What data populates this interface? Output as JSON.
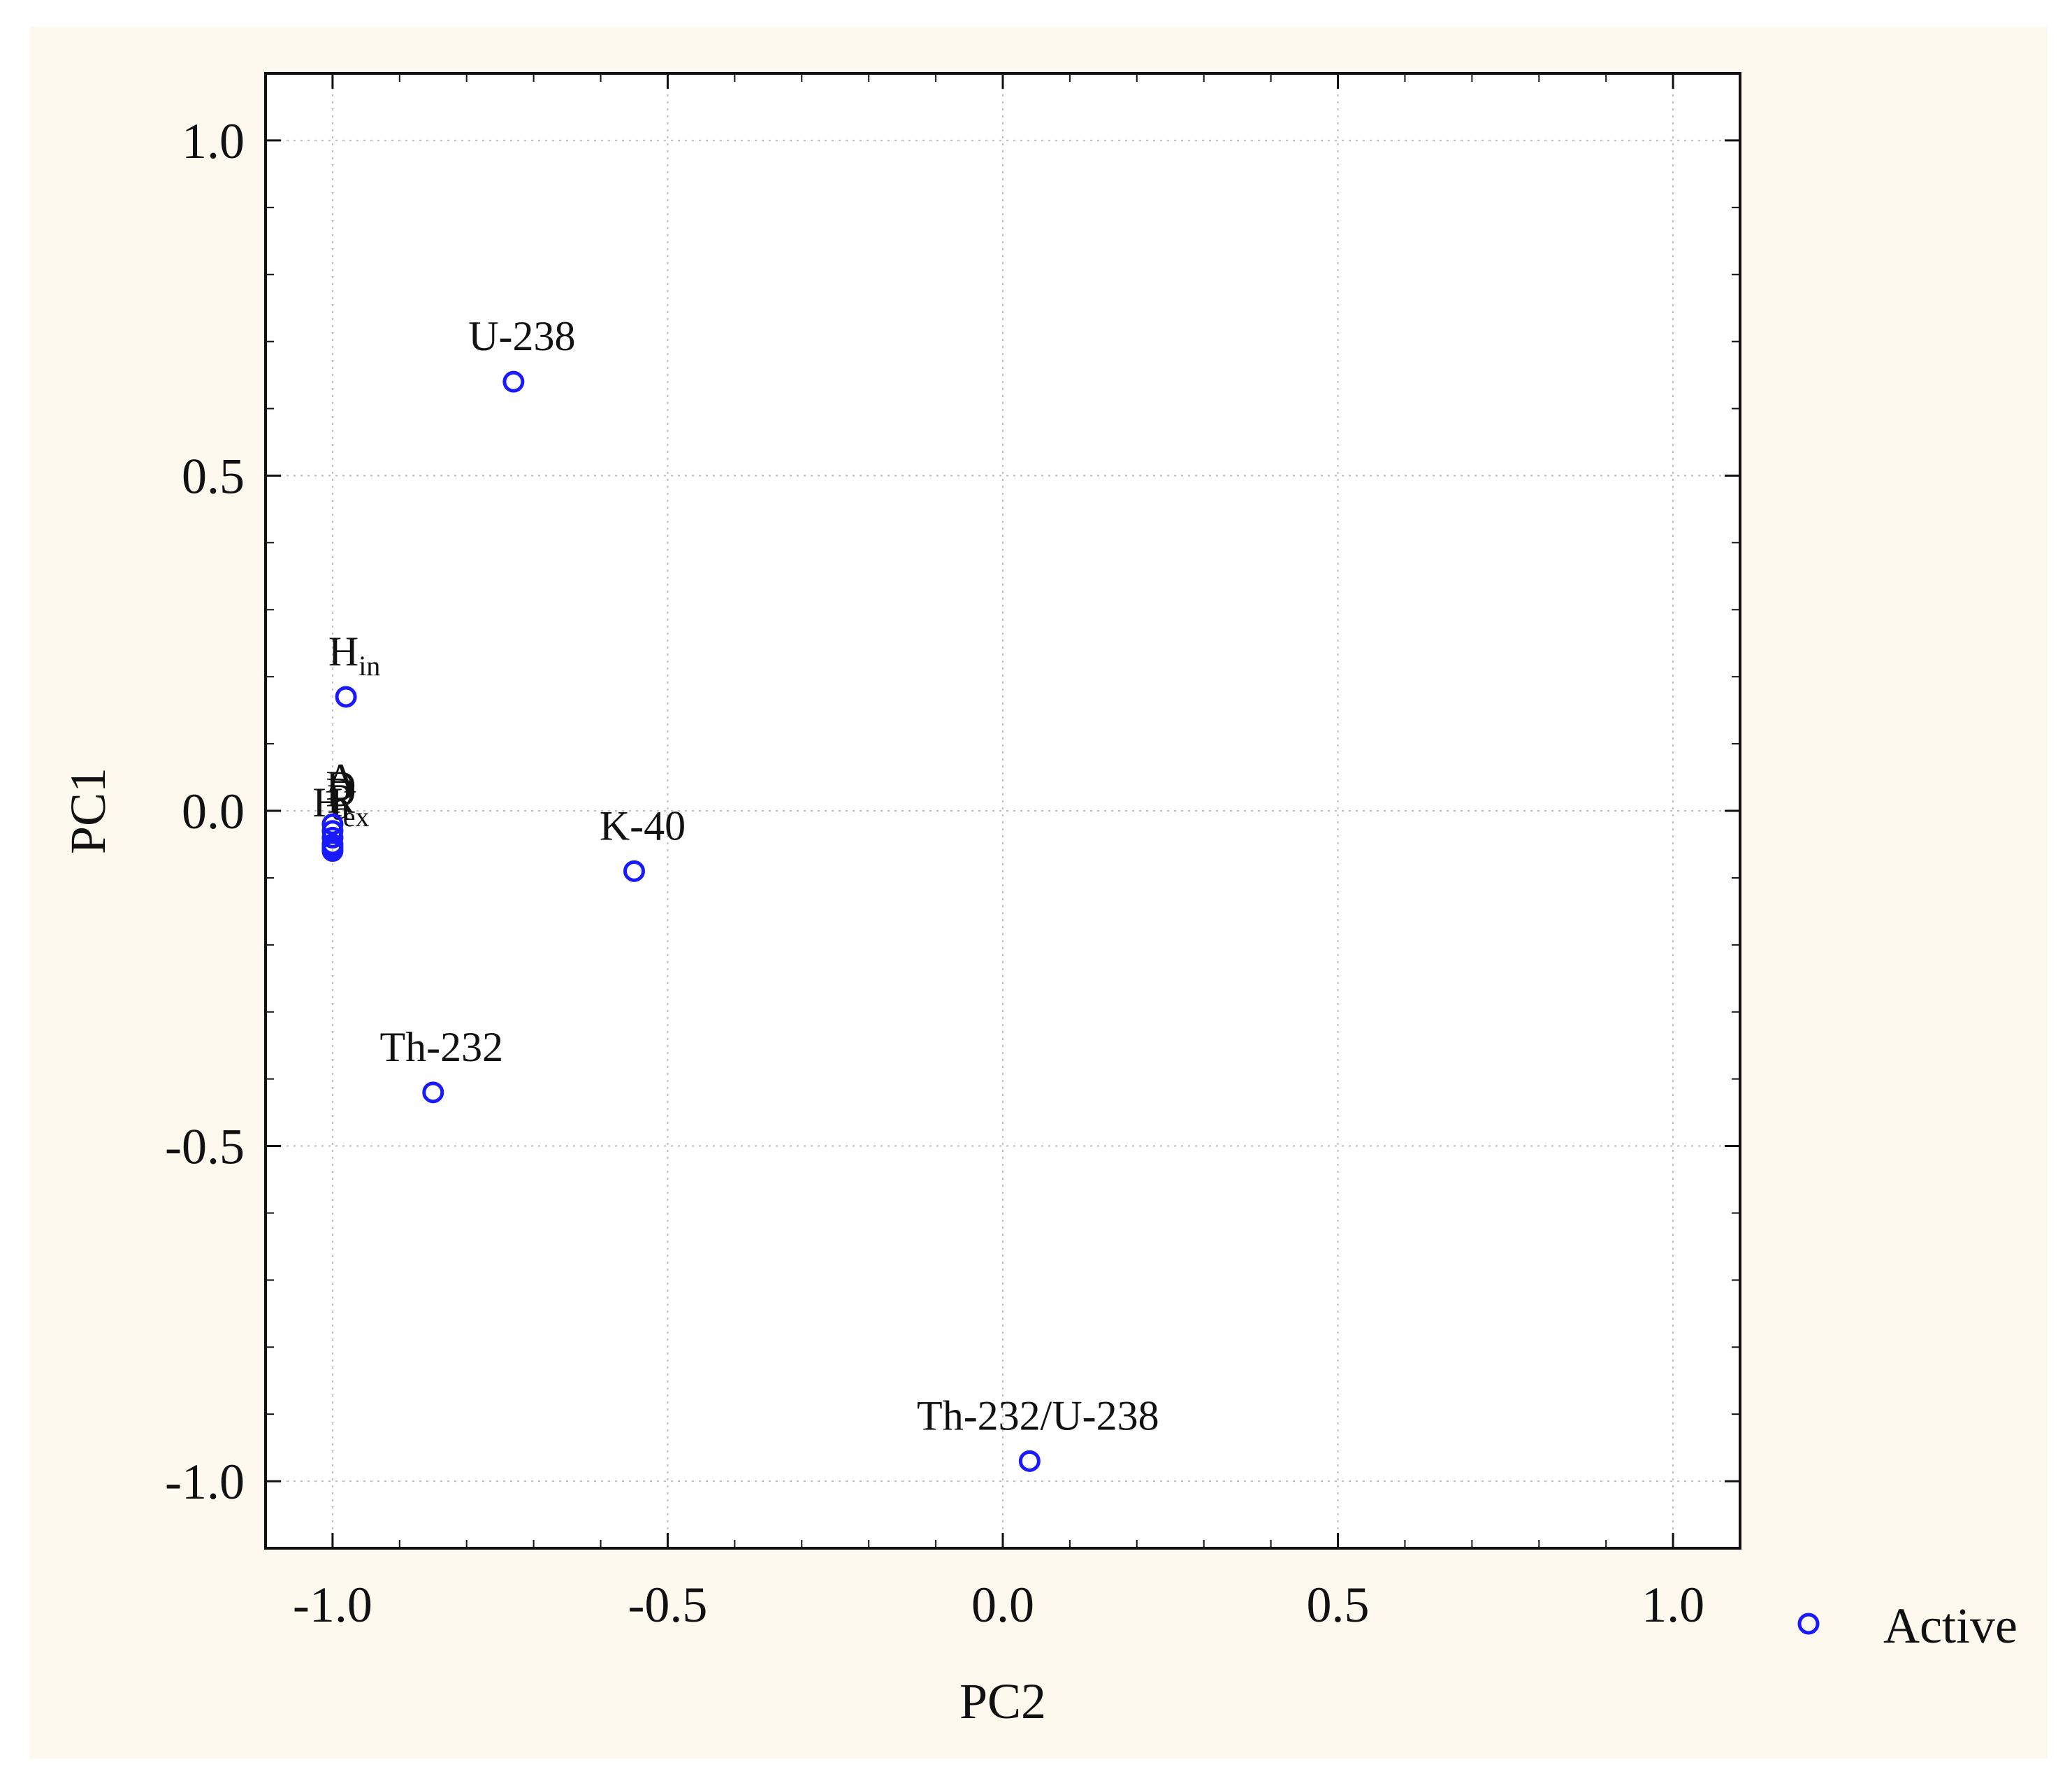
{
  "colors": {
    "panel_background": "#fdf9ee",
    "plot_background": "#ffffff",
    "marker": "#1a1aff",
    "axis": "#111111",
    "grid": "#bdbdbd"
  },
  "chart_data": {
    "type": "scatter",
    "xlabel": "PC2",
    "ylabel": "PC1",
    "xlim": [
      -1.1,
      1.1
    ],
    "ylim": [
      -1.1,
      1.1
    ],
    "xticks": [
      -1.0,
      -0.5,
      0.0,
      0.5,
      1.0
    ],
    "yticks": [
      -1.0,
      -0.5,
      0.0,
      0.5,
      1.0
    ],
    "xtick_labels": [
      "-1.0",
      "-0.5",
      "0.0",
      "0.5",
      "1.0"
    ],
    "ytick_labels": [
      "-1.0",
      "-0.5",
      "0.0",
      "0.5",
      "1.0"
    ],
    "grid": true,
    "legend": {
      "placement": "bottom-right, outside plot",
      "entries": [
        "Active"
      ]
    },
    "series": [
      {
        "name": "Active",
        "marker": "open-circle",
        "points": [
          {
            "label": "U-238",
            "x": -0.73,
            "y": 0.64
          },
          {
            "label": "H",
            "label_sub": "in",
            "x": -0.98,
            "y": 0.17
          },
          {
            "label": "K-40",
            "x": -0.55,
            "y": -0.09
          },
          {
            "label": "Th-232",
            "x": -0.85,
            "y": -0.42
          },
          {
            "label": "Th-232/U-238",
            "x": 0.04,
            "y": -0.97
          },
          {
            "label": "A",
            "x": -1.0,
            "y": -0.02
          },
          {
            "label": "D",
            "x": -1.0,
            "y": -0.03
          },
          {
            "label": "D",
            "x": -1.0,
            "y": -0.04
          },
          {
            "label": "R",
            "x": -1.0,
            "y": -0.05
          },
          {
            "label": "H",
            "label_sub": "ex",
            "x": -1.0,
            "y": -0.055
          },
          {
            "label": "a",
            "x": -1.0,
            "y": -0.06
          }
        ]
      }
    ]
  }
}
